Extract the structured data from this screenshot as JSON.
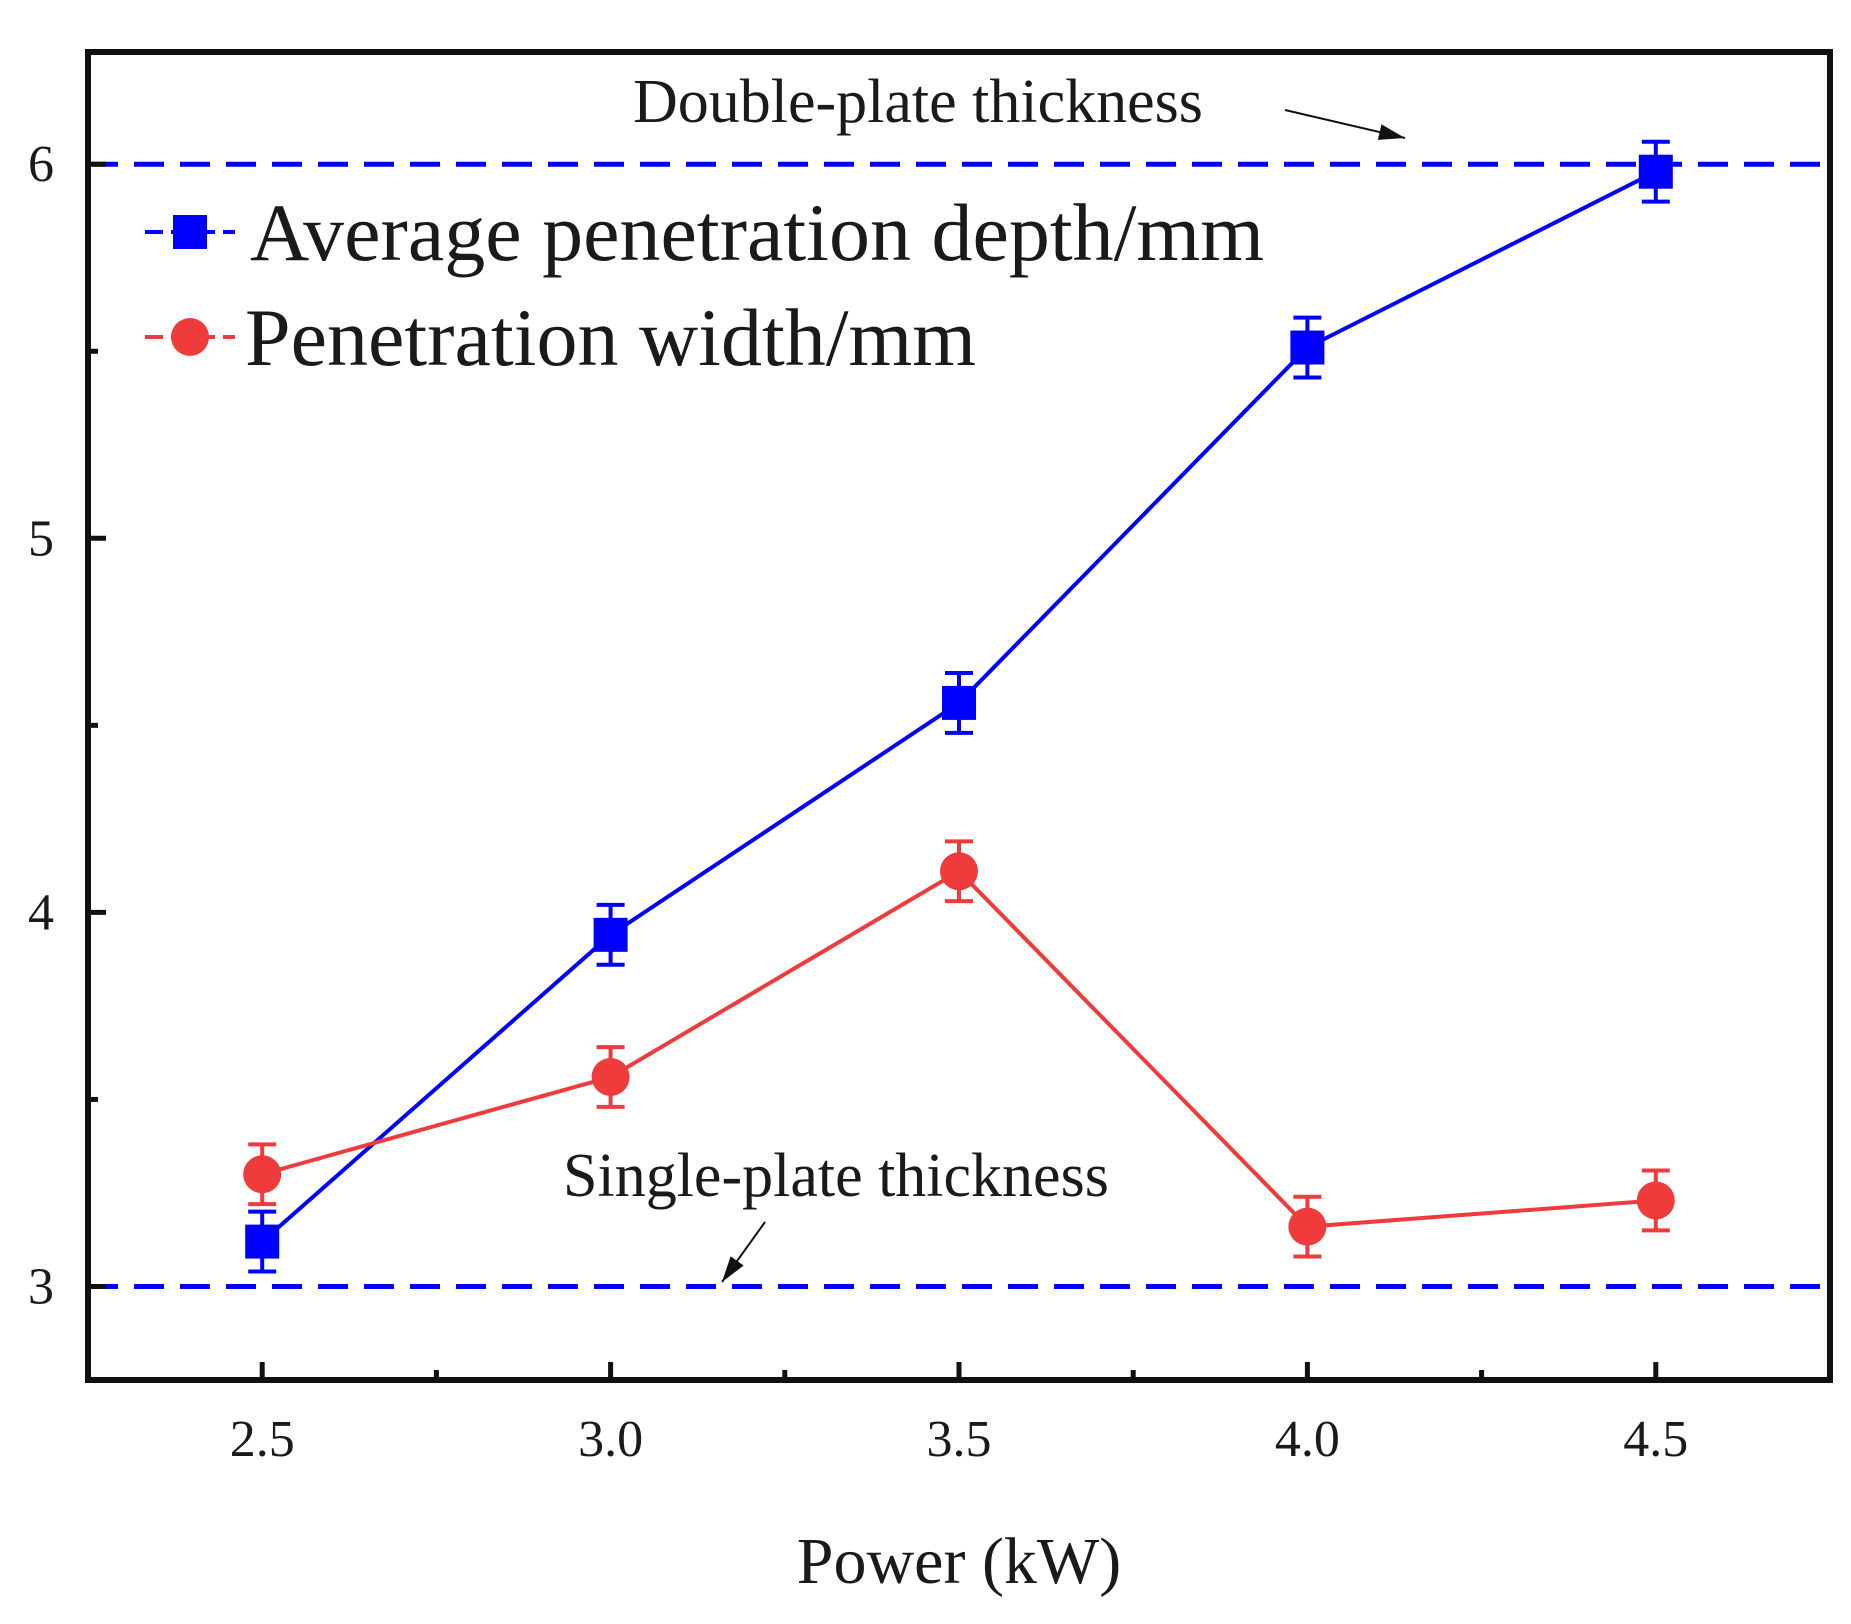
{
  "chart_data": {
    "type": "line",
    "title": "",
    "xlabel": "Power (kW)",
    "ylabel": "",
    "xlim": [
      2.25,
      4.75
    ],
    "ylim": [
      2.75,
      6.3
    ],
    "x": [
      2.5,
      3.0,
      3.5,
      4.0,
      4.5
    ],
    "xticks": [
      2.5,
      3.0,
      3.5,
      4.0,
      4.5
    ],
    "xtick_labels": [
      "2.5",
      "3.0",
      "3.5",
      "4.0",
      "4.5"
    ],
    "yticks": [
      3,
      4,
      5,
      6
    ],
    "ytick_labels": [
      "3",
      "4",
      "5",
      "6"
    ],
    "x_minor_ticks": [
      2.75,
      3.25,
      3.75,
      4.25
    ],
    "y_minor_ticks": [
      3.5,
      4.5,
      5.5
    ],
    "grid": false,
    "legend_position": "top-left",
    "series": [
      {
        "name": "Average penetration depth/mm",
        "color": "#0000ff",
        "marker": "square",
        "values": [
          3.12,
          3.94,
          4.56,
          5.51,
          5.98
        ],
        "errors": [
          0.08,
          0.08,
          0.08,
          0.08,
          0.08
        ]
      },
      {
        "name": "Penetration width/mm",
        "color": "#ef3b3b",
        "marker": "circle",
        "values": [
          3.3,
          3.56,
          4.11,
          3.16,
          3.23
        ],
        "errors": [
          0.08,
          0.08,
          0.08,
          0.08,
          0.08
        ]
      }
    ],
    "reference_lines": [
      {
        "name": "double-plate",
        "value": 6,
        "label": "Double-plate thickness",
        "color": "#0000ff"
      },
      {
        "name": "single-plate",
        "value": 3,
        "label": "Single-plate thickness",
        "color": "#0000ff"
      }
    ]
  }
}
